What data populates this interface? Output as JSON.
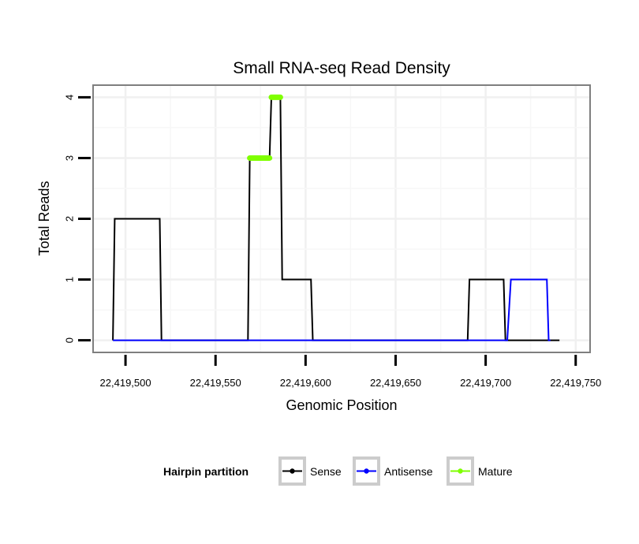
{
  "chart_data": {
    "type": "line",
    "title": "Small RNA-seq Read Density",
    "xlabel": "Genomic Position",
    "ylabel": "Total Reads",
    "xlim": [
      22419482,
      22419758
    ],
    "ylim": [
      -0.2,
      4.2
    ],
    "x_ticks": [
      22419500,
      22419550,
      22419600,
      22419650,
      22419700,
      22419750
    ],
    "x_tick_labels": [
      "22,419,500",
      "22,419,550",
      "22,419,600",
      "22,419,650",
      "22,419,700",
      "22,419,750"
    ],
    "y_ticks": [
      0,
      1,
      2,
      3,
      4
    ],
    "y_tick_labels": [
      "0",
      "1",
      "2",
      "3",
      "4"
    ],
    "grid": true,
    "legend": {
      "title": "Hairpin partition",
      "position": "bottom",
      "entries": [
        {
          "label": "Sense",
          "color": "#000000"
        },
        {
          "label": "Antisense",
          "color": "#0000ff"
        },
        {
          "label": "Mature",
          "color": "#7fff00"
        }
      ]
    },
    "series": [
      {
        "name": "Sense",
        "color": "#000000",
        "points": [
          [
            22419493,
            0
          ],
          [
            22419494,
            2
          ],
          [
            22419519,
            2
          ],
          [
            22419520,
            0
          ],
          [
            22419568,
            0
          ],
          [
            22419569,
            3
          ],
          [
            22419580,
            3
          ],
          [
            22419581,
            4
          ],
          [
            22419586,
            4
          ],
          [
            22419587,
            1
          ],
          [
            22419603,
            1
          ],
          [
            22419604,
            0
          ],
          [
            22419690,
            0
          ],
          [
            22419691,
            1
          ],
          [
            22419710,
            1
          ],
          [
            22419711,
            0
          ],
          [
            22419741,
            0
          ]
        ]
      },
      {
        "name": "Antisense",
        "color": "#0000ff",
        "points": [
          [
            22419493,
            0
          ],
          [
            22419712,
            0
          ],
          [
            22419714,
            1
          ],
          [
            22419734,
            1
          ],
          [
            22419735,
            0
          ],
          [
            22419736,
            0
          ]
        ]
      },
      {
        "name": "Mature",
        "color": "#7fff00",
        "segments": [
          {
            "x1": 22419569,
            "x2": 22419580,
            "y": 3
          },
          {
            "x1": 22419581,
            "x2": 22419586,
            "y": 4
          }
        ]
      }
    ]
  }
}
